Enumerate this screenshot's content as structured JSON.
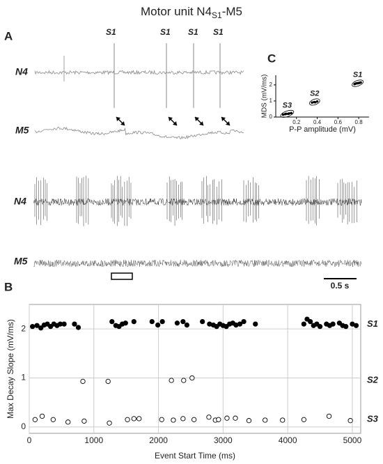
{
  "figure": {
    "title": {
      "main": "Motor unit N4",
      "sub": "S1",
      "end": "-M5"
    },
    "panels": [
      "A",
      "B",
      "C"
    ],
    "traces": {
      "top": [
        "N4",
        "M5"
      ],
      "spikes": [
        "S1",
        "S1",
        "S1",
        "S1"
      ],
      "raw": [
        "N4",
        "M5"
      ],
      "scale_bar": "0.5 s"
    }
  },
  "chart_data": [
    {
      "type": "scatter",
      "x_label": "Event Start Time  (ms)",
      "y_label": "Max Decay Slope  (mV/ms)",
      "xlim": [
        0,
        5130
      ],
      "ylim": [
        -0.13,
        2.5
      ],
      "xticks": [
        0,
        1000,
        2000,
        3000,
        4000,
        5000
      ],
      "yticks": [
        0,
        1,
        2
      ],
      "grid": true,
      "series": [
        {
          "name": "S1",
          "color": "#000000",
          "marker": "filled",
          "x": [
            50,
            120,
            180,
            230,
            280,
            330,
            380,
            430,
            480,
            540,
            700,
            760,
            1280,
            1340,
            1390,
            1440,
            1490,
            1620,
            1900,
            1990,
            2060,
            2290,
            2380,
            2440,
            2680,
            2790,
            2850,
            2900,
            2950,
            3000,
            3050,
            3100,
            3150,
            3200,
            3260,
            3320,
            3500,
            4250,
            4300,
            4350,
            4400,
            4450,
            4500,
            4600,
            4650,
            4700,
            4800,
            4850,
            4900,
            5000,
            5060
          ],
          "values": [
            2.05,
            2.07,
            2.02,
            2.08,
            2.1,
            2.05,
            2.1,
            2.07,
            2.1,
            2.1,
            2.1,
            2.03,
            2.15,
            2.07,
            2.05,
            2.1,
            2.12,
            2.15,
            2.15,
            2.08,
            2.15,
            2.12,
            2.15,
            2.08,
            2.15,
            2.1,
            2.08,
            2.05,
            2.1,
            2.07,
            2.05,
            2.1,
            2.12,
            2.08,
            2.1,
            2.15,
            2.1,
            2.1,
            2.2,
            2.15,
            2.07,
            2.1,
            2.05,
            2.1,
            2.07,
            2.1,
            2.12,
            2.07,
            2.05,
            2.1,
            2.07
          ]
        },
        {
          "name": "S2",
          "color": "#000000",
          "marker": "open",
          "x": [
            830,
            1220,
            2200,
            2390,
            2520
          ],
          "values": [
            0.93,
            0.93,
            0.95,
            0.95,
            1.0
          ]
        },
        {
          "name": "S3",
          "color": "#000000",
          "marker": "open",
          "x": [
            90,
            200,
            370,
            600,
            850,
            1240,
            1520,
            1620,
            1700,
            2050,
            2230,
            2380,
            2550,
            2780,
            2880,
            2930,
            3060,
            3190,
            3400,
            3650,
            3920,
            4250,
            4640,
            4970
          ],
          "values": [
            0.15,
            0.22,
            0.15,
            0.1,
            0.12,
            0.08,
            0.15,
            0.17,
            0.17,
            0.15,
            0.14,
            0.17,
            0.15,
            0.2,
            0.14,
            0.15,
            0.18,
            0.18,
            0.13,
            0.14,
            0.14,
            0.15,
            0.22,
            0.13
          ]
        }
      ]
    },
    {
      "type": "scatter",
      "x_label": "P-P amplitude (mV)",
      "y_label": "MDS (mV/ms)",
      "xlim": [
        0,
        0.9
      ],
      "ylim": [
        0,
        2.6
      ],
      "xticks": [
        0.2,
        0.4,
        0.6,
        0.8
      ],
      "yticks": [
        0,
        1,
        2
      ],
      "grid": false,
      "series": [
        {
          "name": "S1",
          "color": "#000000",
          "marker": "filled",
          "x": [
            0.76,
            0.77,
            0.78,
            0.79,
            0.8,
            0.81,
            0.82
          ],
          "values": [
            2.05,
            2.08,
            2.1,
            2.1,
            2.12,
            2.13,
            2.15
          ]
        },
        {
          "name": "S2",
          "color": "#000000",
          "marker": "filled",
          "x": [
            0.35,
            0.37,
            0.38,
            0.4
          ],
          "values": [
            0.9,
            0.93,
            0.92,
            0.97
          ]
        },
        {
          "name": "S3",
          "color": "#000000",
          "marker": "filled",
          "x": [
            0.07,
            0.09,
            0.1,
            0.12,
            0.13,
            0.15
          ],
          "values": [
            0.15,
            0.18,
            0.2,
            0.2,
            0.22,
            0.25
          ]
        }
      ]
    }
  ]
}
